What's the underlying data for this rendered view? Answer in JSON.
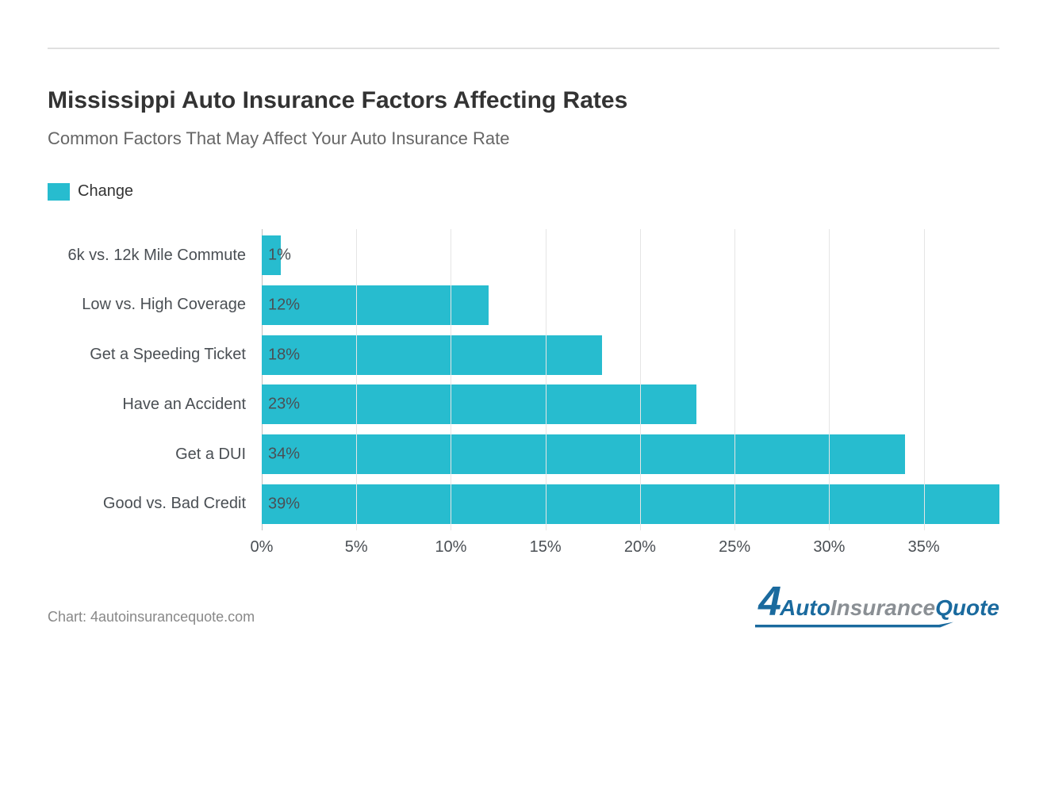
{
  "chart": {
    "type": "bar-horizontal",
    "title": "Mississippi Auto Insurance Factors Affecting Rates",
    "subtitle": "Common Factors That May Affect Your Auto Insurance Rate",
    "legend": {
      "label": "Change",
      "color": "#27bccf"
    },
    "categories": [
      "6k vs. 12k Mile Commute",
      "Low vs. High Coverage",
      "Get a Speeding Ticket",
      "Have an Accident",
      "Get a DUI",
      "Good vs. Bad Credit"
    ],
    "values": [
      1,
      12,
      18,
      23,
      34,
      39
    ],
    "value_labels": [
      "1%",
      "12%",
      "18%",
      "23%",
      "34%",
      "39%"
    ],
    "bar_color": "#27bccf",
    "bar_label_color": "#4a4f54",
    "xlim": [
      0,
      39
    ],
    "xticks": [
      0,
      5,
      10,
      15,
      20,
      25,
      30,
      35
    ],
    "xtick_labels": [
      "0%",
      "5%",
      "10%",
      "15%",
      "20%",
      "25%",
      "30%",
      "35%"
    ],
    "grid_color": "#e5e5e5",
    "axis_color": "#bfbfbf",
    "background_color": "#ffffff",
    "title_fontsize": 30,
    "subtitle_fontsize": 22,
    "label_fontsize": 20,
    "credit": "Chart: 4autoinsurancequote.com"
  },
  "logo": {
    "prefix": "4",
    "part1": "uto",
    "part2": "Insurance",
    "part3": "Quote",
    "color_primary": "#1a6a9e",
    "color_secondary": "#8a8f94"
  }
}
